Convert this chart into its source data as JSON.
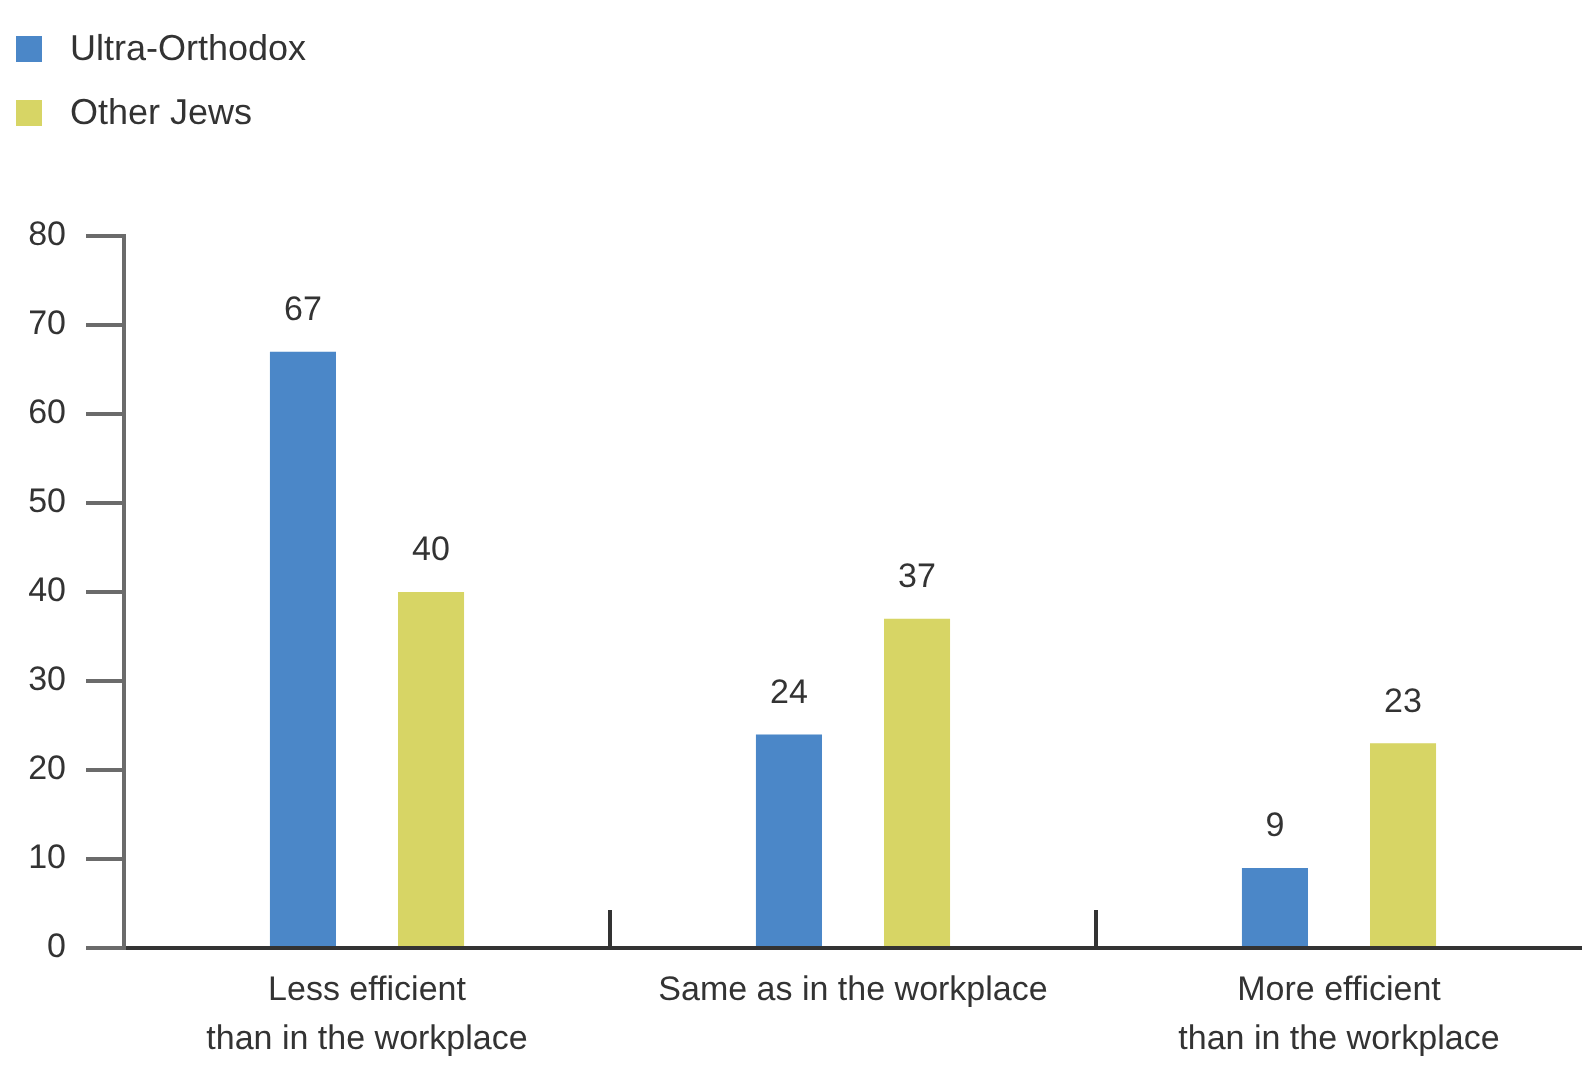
{
  "chart_data": {
    "type": "bar",
    "categories": [
      "Less efficient\nthan in the workplace",
      "Same as in the workplace",
      "More efficient\nthan in the workplace"
    ],
    "series": [
      {
        "name": "Ultra-Orthodox",
        "color": "#4b87c8",
        "values": [
          67,
          24,
          9
        ]
      },
      {
        "name": "Other Jews",
        "color": "#d7d565",
        "values": [
          40,
          37,
          23
        ]
      }
    ],
    "ylim": [
      0,
      80
    ],
    "yticks": [
      0,
      10,
      20,
      30,
      40,
      50,
      60,
      70,
      80
    ],
    "data_labels": true,
    "legend": "top left"
  }
}
